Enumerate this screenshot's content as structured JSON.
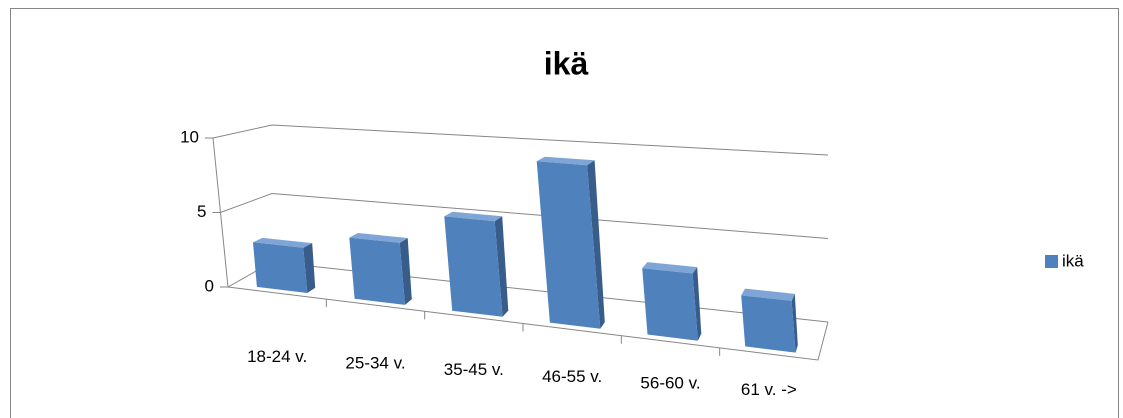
{
  "chart_data": {
    "type": "bar3d",
    "title": "ikä",
    "categories": [
      "18-24 v.",
      "25-34 v.",
      "35-45 v.",
      "46-55 v.",
      "56-60 v.",
      "61 v. ->"
    ],
    "series": [
      {
        "name": "ikä",
        "color": "#4f81bd",
        "values": [
          3,
          4,
          6,
          10,
          4,
          3
        ]
      }
    ],
    "ylim": [
      0,
      10
    ],
    "yticks": [
      0,
      5,
      10
    ],
    "grid": true,
    "legend": "right"
  }
}
